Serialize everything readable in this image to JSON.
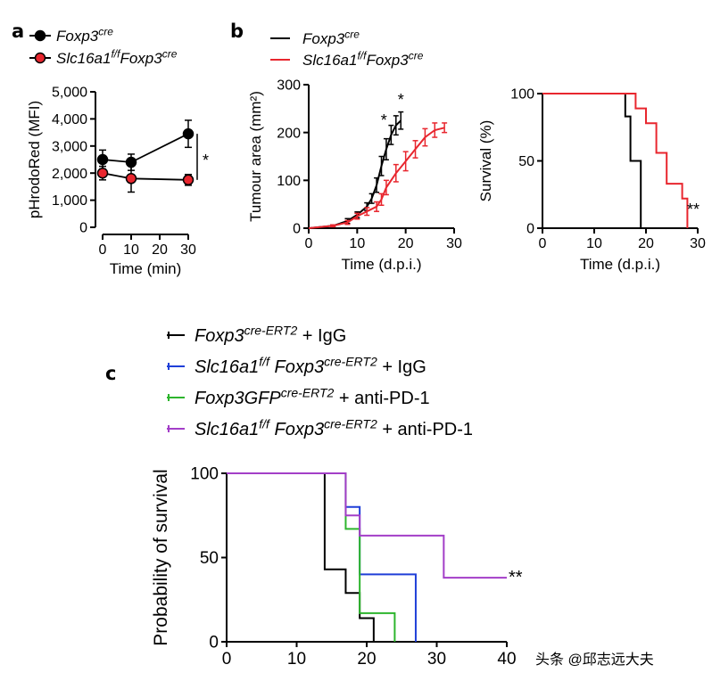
{
  "watermark": "头条 @邱志远大夫",
  "colors": {
    "black": "#000000",
    "red": "#e8262e",
    "blue": "#1f3fd8",
    "green": "#2db52d",
    "purple": "#a33ec8"
  },
  "chart_data": [
    {
      "panel": "a",
      "type": "line",
      "title": "",
      "legend": [
        {
          "name_base": "Foxp3",
          "name_sup": "cre",
          "color": "#000000"
        },
        {
          "name_base": "Slc16a1",
          "name_sup": "f/f",
          "name_base2": "Foxp3",
          "name_sup2": "cre",
          "color": "#e8262e"
        }
      ],
      "xlabel": "Time (min)",
      "ylabel": "pHrodoRed (MFI)",
      "xlim": [
        0,
        30
      ],
      "ylim": [
        0,
        5000
      ],
      "xticks": [
        0,
        10,
        20,
        30
      ],
      "yticks": [
        0,
        1000,
        2000,
        3000,
        4000,
        5000
      ],
      "ytick_labels": [
        "0",
        "1,000",
        "2,000",
        "3,000",
        "4,000",
        "5,000"
      ],
      "series": [
        {
          "name": "Foxp3cre",
          "color": "#000000",
          "x": [
            0,
            10,
            30
          ],
          "values": [
            2500,
            2400,
            3450
          ],
          "err": [
            350,
            300,
            500
          ]
        },
        {
          "name": "Slc16a1f/fFoxp3cre",
          "color": "#e8262e",
          "x": [
            0,
            10,
            30
          ],
          "values": [
            2000,
            1800,
            1750
          ],
          "err": [
            250,
            500,
            200
          ]
        }
      ],
      "annotation": "*"
    },
    {
      "panel": "b-left",
      "type": "line",
      "legend": [
        {
          "name_base": "Foxp3",
          "name_sup": "cre",
          "color": "#000000"
        },
        {
          "name_base": "Slc16a1",
          "name_sup": "f/f",
          "name_base2": "Foxp3",
          "name_sup2": "cre",
          "color": "#e8262e"
        }
      ],
      "xlabel": "Time (d.p.i.)",
      "ylabel": "Tumour area (mm²)",
      "xlim": [
        0,
        30
      ],
      "ylim": [
        0,
        300
      ],
      "xticks": [
        0,
        10,
        20,
        30
      ],
      "yticks": [
        0,
        100,
        200,
        300
      ],
      "series": [
        {
          "name": "Foxp3cre",
          "color": "#000000",
          "x": [
            0,
            5,
            8,
            10,
            12,
            13,
            14,
            15,
            16,
            17,
            18,
            19
          ],
          "values": [
            0,
            5,
            15,
            28,
            45,
            62,
            90,
            130,
            165,
            195,
            215,
            225
          ],
          "err": [
            0,
            2,
            5,
            6,
            8,
            10,
            15,
            20,
            22,
            20,
            20,
            18
          ]
        },
        {
          "name": "Slc16a1f/fFoxp3cre",
          "color": "#e8262e",
          "x": [
            0,
            5,
            8,
            10,
            12,
            14,
            15,
            16,
            18,
            20,
            22,
            24,
            26,
            28
          ],
          "values": [
            0,
            5,
            12,
            25,
            35,
            45,
            60,
            85,
            115,
            140,
            165,
            190,
            205,
            210
          ],
          "err": [
            0,
            2,
            4,
            6,
            8,
            10,
            12,
            15,
            18,
            20,
            18,
            18,
            15,
            10
          ]
        }
      ],
      "annotations": [
        "*",
        "*"
      ]
    },
    {
      "panel": "b-right",
      "type": "line",
      "xlabel": "Time (d.p.i.)",
      "ylabel": "Survival (%)",
      "xlim": [
        0,
        30
      ],
      "ylim": [
        0,
        100
      ],
      "xticks": [
        0,
        10,
        20,
        30
      ],
      "yticks": [
        0,
        50,
        100
      ],
      "series": [
        {
          "name": "Foxp3cre",
          "color": "#000000",
          "x": [
            0,
            15,
            16,
            17,
            19,
            19
          ],
          "values": [
            100,
            100,
            83,
            50,
            50,
            0
          ]
        },
        {
          "name": "Slc16a1f/fFoxp3cre",
          "color": "#e8262e",
          "x": [
            0,
            17,
            18,
            20,
            22,
            24,
            27,
            28,
            28
          ],
          "values": [
            100,
            100,
            89,
            78,
            56,
            33,
            22,
            22,
            0
          ]
        }
      ],
      "annotation": "**"
    },
    {
      "panel": "c",
      "type": "line",
      "legend": [
        {
          "name_base": "Foxp3",
          "name_sup": "cre-ERT2",
          "suffix": " + IgG",
          "color": "#000000"
        },
        {
          "name_base": "Slc16a1",
          "name_sup": "f/f",
          "name_base2": " Foxp3",
          "name_sup2": "cre-ERT2",
          "suffix": " + IgG",
          "color": "#1f3fd8"
        },
        {
          "name_base": "Foxp3GFP",
          "name_sup": "cre-ERT2",
          "suffix": " + anti-PD-1",
          "color": "#2db52d"
        },
        {
          "name_base": "Slc16a1",
          "name_sup": "f/f",
          "name_base2": " Foxp3",
          "name_sup2": "cre-ERT2",
          "suffix": " + anti-PD-1",
          "color": "#a33ec8"
        }
      ],
      "xlabel": "",
      "ylabel": "Probability of survival",
      "xlim": [
        0,
        40
      ],
      "ylim": [
        0,
        100
      ],
      "xticks": [
        0,
        10,
        20,
        30,
        40
      ],
      "yticks": [
        0,
        50,
        100
      ],
      "series": [
        {
          "name": "Foxp3cre-ERT2 + IgG",
          "color": "#000000",
          "x": [
            0,
            14,
            14,
            17,
            17,
            19,
            19,
            21,
            21
          ],
          "values": [
            100,
            100,
            43,
            43,
            29,
            29,
            14,
            14,
            0
          ]
        },
        {
          "name": "Slc16a1f/f Foxp3cre-ERT2 + IgG",
          "color": "#1f3fd8",
          "x": [
            0,
            17,
            17,
            19,
            19,
            27,
            27
          ],
          "values": [
            100,
            100,
            80,
            80,
            40,
            40,
            0
          ]
        },
        {
          "name": "Foxp3GFPcre-ERT2 + anti-PD-1",
          "color": "#2db52d",
          "x": [
            0,
            17,
            17,
            19,
            19,
            24,
            24
          ],
          "values": [
            100,
            100,
            67,
            67,
            17,
            17,
            0
          ]
        },
        {
          "name": "Slc16a1f/f Foxp3cre-ERT2 + anti-PD-1",
          "color": "#a33ec8",
          "x": [
            0,
            17,
            17,
            19,
            19,
            31,
            31,
            40
          ],
          "values": [
            100,
            100,
            75,
            75,
            63,
            63,
            38,
            38
          ]
        }
      ],
      "annotation": "**"
    }
  ],
  "labels": {
    "a": "a",
    "b": "b",
    "c": "c"
  }
}
